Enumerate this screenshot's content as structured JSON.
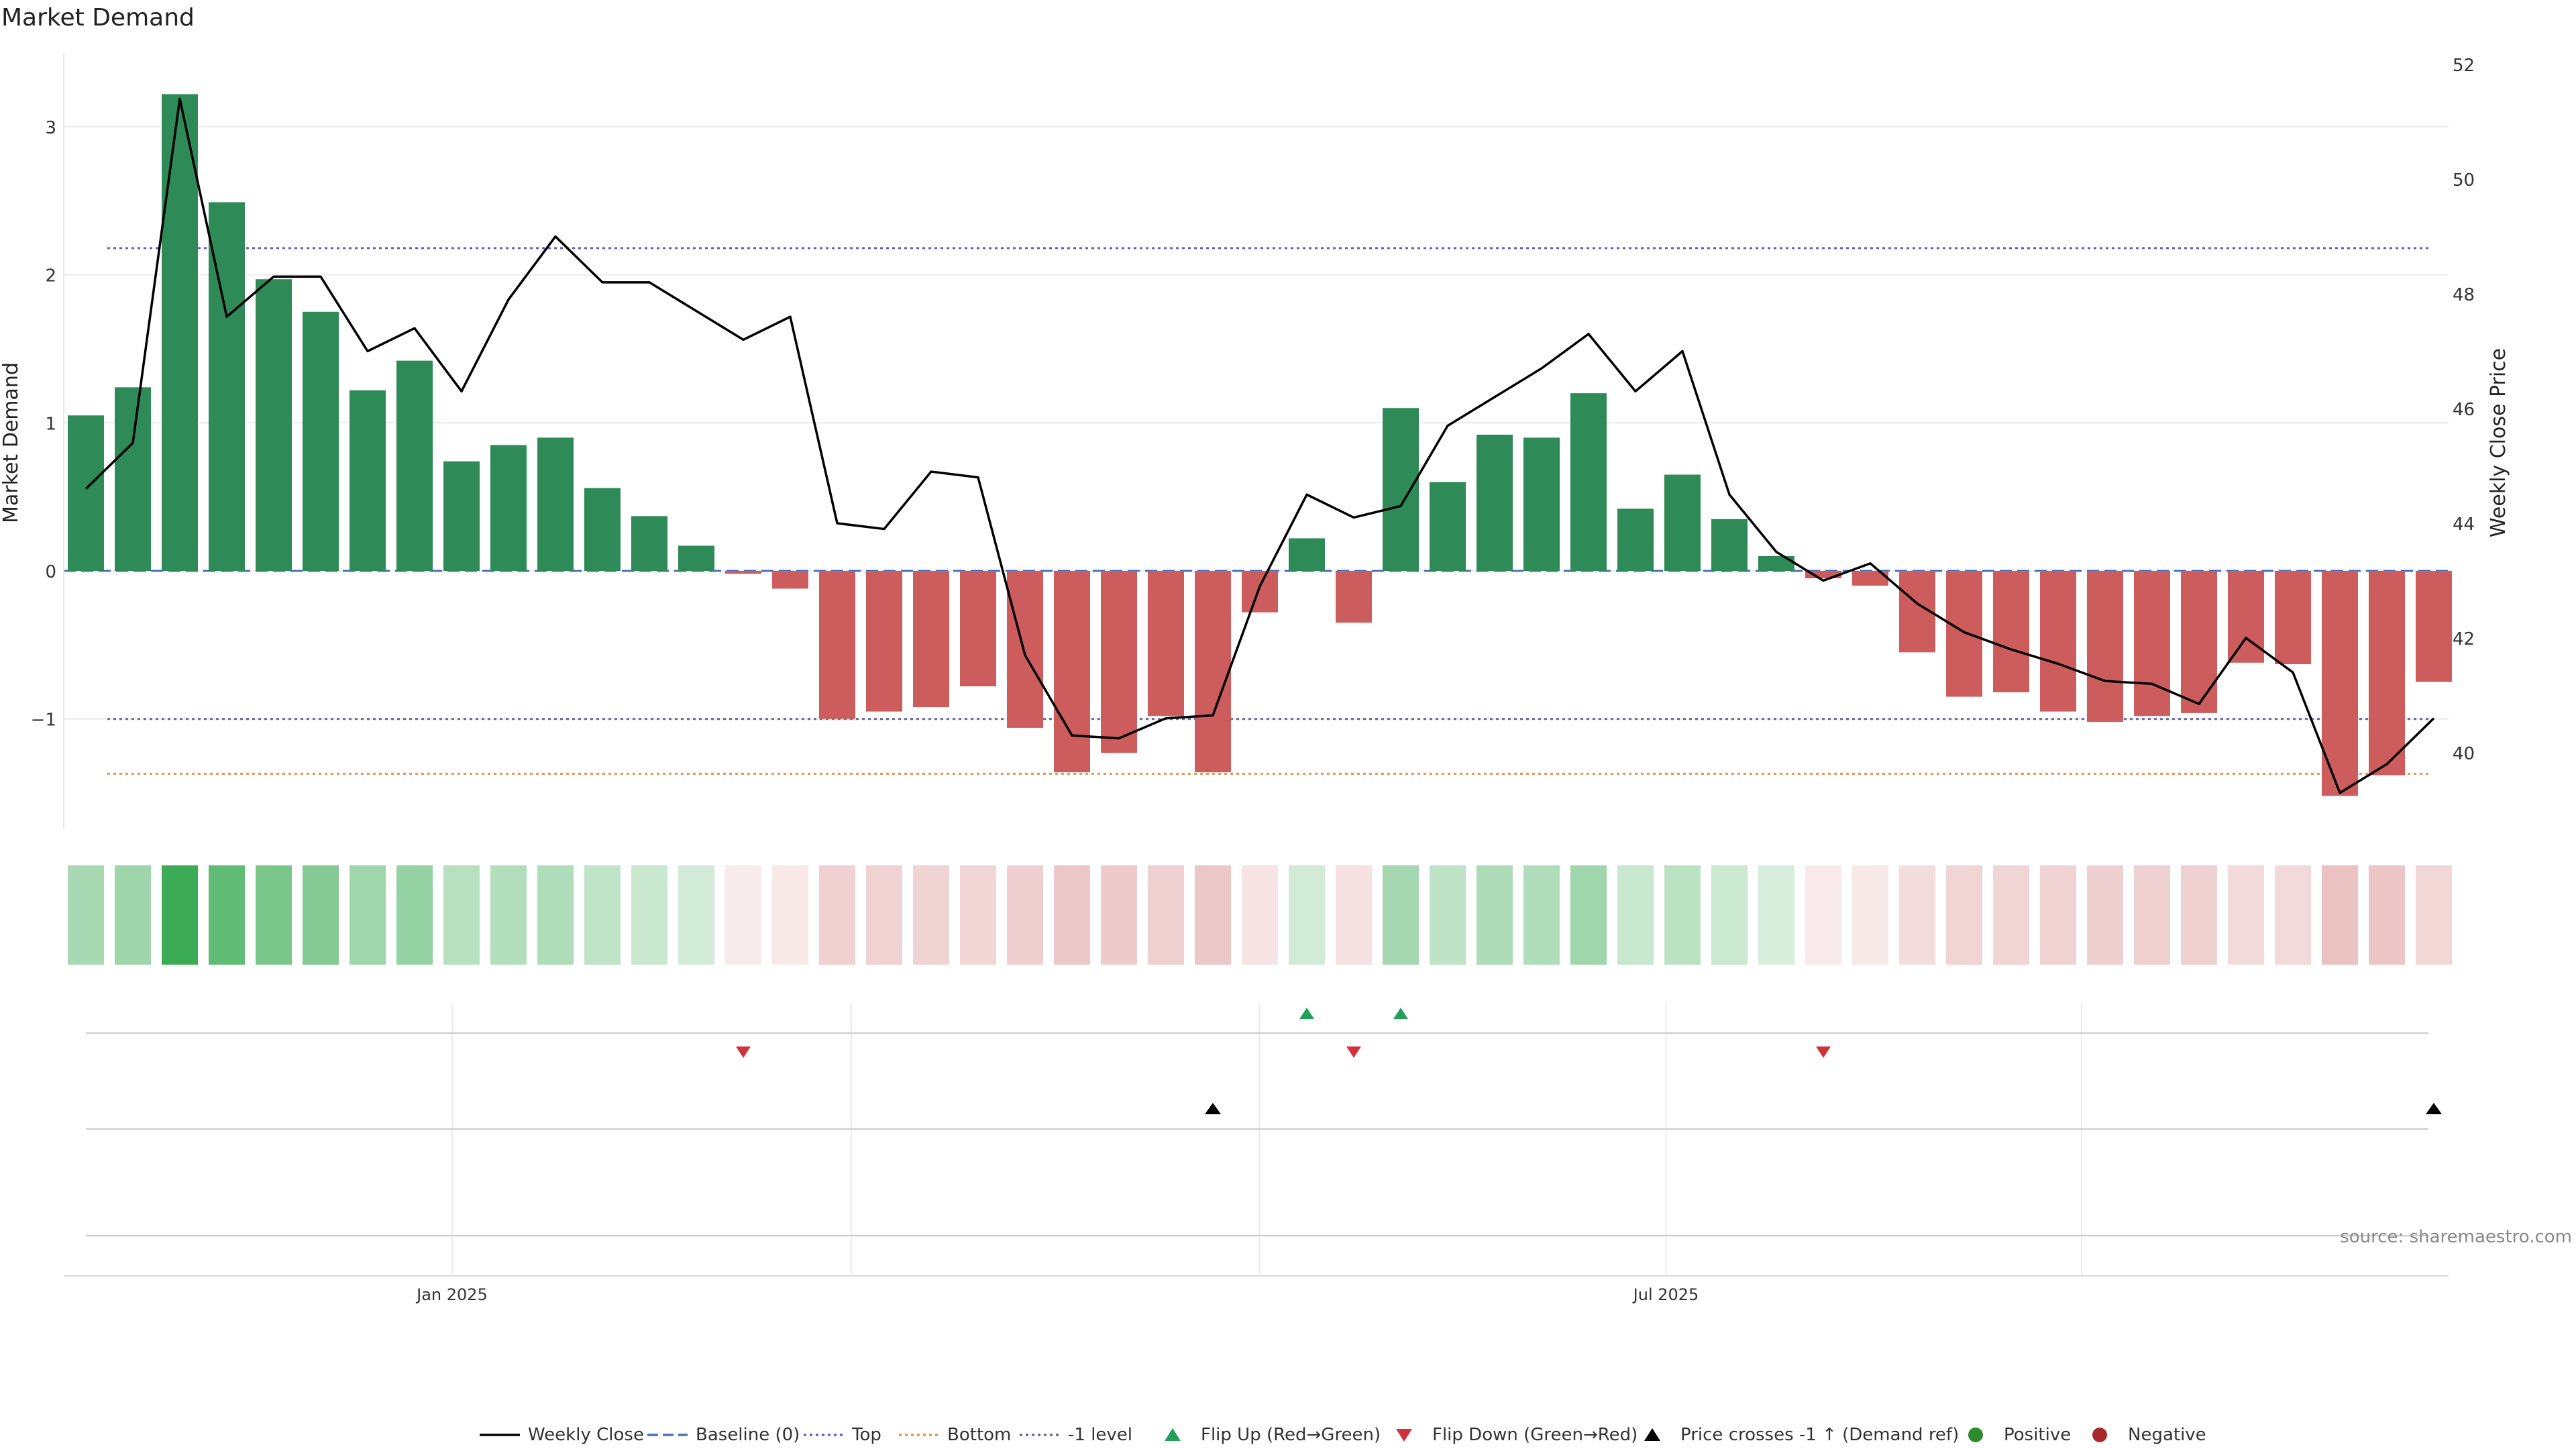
{
  "title": "Market Demand",
  "source": "source: sharemaestro.com",
  "colors": {
    "pos_bar": "#2e8b57",
    "neg_bar": "#cd5c5c",
    "line": "#000000",
    "baseline": "#4a6fbf",
    "top": "#6a5acd",
    "bottom": "#e8934a",
    "minus_one": "#666699",
    "flip_up": "#22a05a",
    "flip_down": "#d0313a",
    "cross": "#000000",
    "positive_dot": "#2e8b2e",
    "negative_dot": "#a52a2a",
    "grid": "#ececec"
  },
  "chart_data": {
    "type": "bar+line",
    "title": "Market Demand",
    "ylabel": "Market Demand",
    "y2label": "Weekly Close Price",
    "ylim": [
      -1.75,
      3.5
    ],
    "y2lim": [
      38.75,
      52.5
    ],
    "yticks": [
      -1,
      0,
      1,
      2,
      3
    ],
    "ytick_labels": [
      "−1",
      "0",
      "1",
      "2",
      "3"
    ],
    "y2ticks": [
      40,
      42,
      44,
      46,
      48,
      50,
      52
    ],
    "y2tick_labels": [
      "40",
      "42",
      "44",
      "46",
      "48",
      "50",
      "52"
    ],
    "xtick_labels": [
      {
        "label": "Jan 2025",
        "index": 7.8
      },
      {
        "label": "Jul 2025",
        "index": 33.65
      }
    ],
    "reference_lines": {
      "baseline": 0,
      "top": 2.18,
      "bottom": -1.37,
      "minus_one": -1
    },
    "demand": [
      1.05,
      1.24,
      3.22,
      2.49,
      1.97,
      1.75,
      1.22,
      1.42,
      0.74,
      0.85,
      0.9,
      0.56,
      0.37,
      0.17,
      -0.02,
      -0.12,
      -1.0,
      -0.95,
      -0.92,
      -0.78,
      -1.06,
      -1.36,
      -1.23,
      -0.98,
      -1.36,
      -0.28,
      0.22,
      -0.35,
      1.1,
      0.6,
      0.92,
      0.9,
      1.2,
      0.42,
      0.65,
      0.35,
      0.1,
      -0.05,
      -0.1,
      -0.55,
      -0.85,
      -0.82,
      -0.95,
      -1.02,
      -0.98,
      -0.96,
      -0.62,
      -0.63,
      -1.52,
      -1.38,
      -0.75
    ],
    "weekly_close": [
      44.6,
      45.4,
      51.4,
      47.6,
      48.3,
      48.3,
      47.0,
      47.4,
      46.3,
      47.9,
      49.0,
      48.2,
      48.2,
      47.7,
      47.2,
      47.6,
      44.0,
      43.9,
      44.9,
      44.8,
      41.7,
      40.3,
      40.25,
      40.6,
      40.65,
      42.9,
      44.5,
      44.1,
      44.3,
      45.7,
      46.2,
      46.7,
      47.3,
      46.3,
      47.0,
      44.5,
      43.5,
      43.0,
      43.3,
      42.6,
      42.1,
      41.8,
      41.55,
      41.25,
      41.2,
      40.85,
      42.0,
      41.4,
      39.3,
      39.8,
      40.6
    ],
    "flip_up_indices": [
      26,
      28
    ],
    "flip_down_indices": [
      14,
      27,
      37
    ],
    "price_cross_indices": [
      24,
      50
    ],
    "legend": [
      "Weekly Close",
      "Baseline (0)",
      "Top",
      "Bottom",
      "-1 level",
      "Flip Up (Red→Green)",
      "Flip Down (Green→Red)",
      "Price crosses -1 ↑ (Demand ref)",
      "Positive",
      "Negative"
    ]
  }
}
